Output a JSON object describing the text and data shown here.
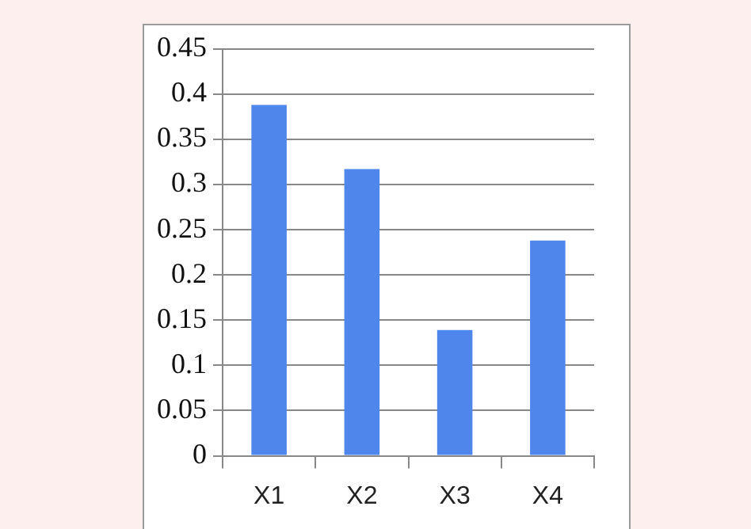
{
  "chart_data": {
    "type": "bar",
    "categories": [
      "X1",
      "X2",
      "X3",
      "X4"
    ],
    "values": [
      0.388,
      0.317,
      0.139,
      0.238
    ],
    "color": "#4f86ec",
    "ylim": [
      0,
      0.45
    ],
    "yticks": [
      0,
      0.05,
      0.1,
      0.15,
      0.2,
      0.25,
      0.3,
      0.35,
      0.4,
      0.45
    ],
    "grid": "y"
  }
}
